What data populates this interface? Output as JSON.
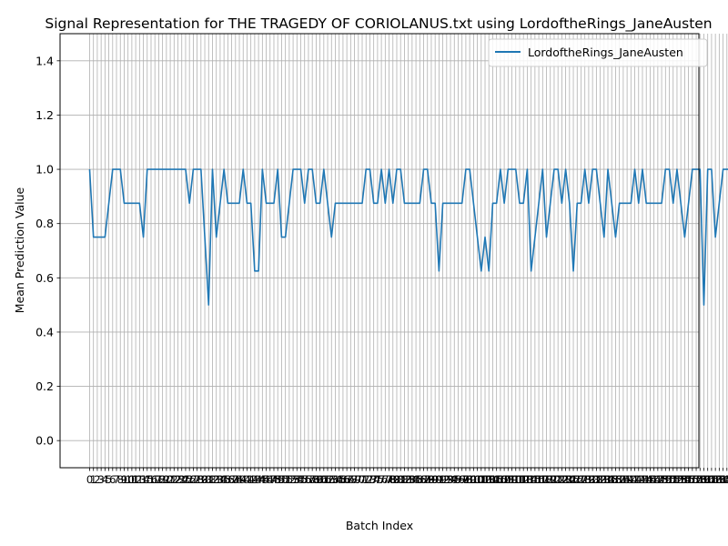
{
  "chart_data": {
    "type": "line",
    "title": "Signal Representation for THE TRAGEDY OF CORIOLANUS.txt using LordoftheRings_JaneAusten",
    "xlabel": "Batch Index",
    "ylabel": "Mean Prediction Value",
    "xlim": [
      -7.7,
      158.7
    ],
    "ylim": [
      -0.1,
      1.5
    ],
    "yticks": [
      0.0,
      0.2,
      0.4,
      0.6,
      0.8,
      1.0,
      1.2,
      1.4
    ],
    "ytick_labels": [
      "0.0",
      "0.2",
      "0.4",
      "0.6",
      "0.8",
      "1.0",
      "1.2",
      "1.4"
    ],
    "grid": true,
    "legend_position": "top-right",
    "series": [
      {
        "name": "LordoftheRings_JaneAusten",
        "color": "#1f77b4",
        "values": [
          1.0,
          0.75,
          0.75,
          0.75,
          0.75,
          0.875,
          1.0,
          1.0,
          1.0,
          0.875,
          0.875,
          0.875,
          0.875,
          0.875,
          0.75,
          1.0,
          1.0,
          1.0,
          1.0,
          1.0,
          1.0,
          1.0,
          1.0,
          1.0,
          1.0,
          1.0,
          0.875,
          1.0,
          1.0,
          1.0,
          0.75,
          0.5,
          1.0,
          0.75,
          0.875,
          1.0,
          0.875,
          0.875,
          0.875,
          0.875,
          1.0,
          0.875,
          0.875,
          0.625,
          0.625,
          1.0,
          0.875,
          0.875,
          0.875,
          1.0,
          0.75,
          0.75,
          0.875,
          1.0,
          1.0,
          1.0,
          0.875,
          1.0,
          1.0,
          0.875,
          0.875,
          1.0,
          0.875,
          0.75,
          0.875,
          0.875,
          0.875,
          0.875,
          0.875,
          0.875,
          0.875,
          0.875,
          1.0,
          1.0,
          0.875,
          0.875,
          1.0,
          0.875,
          1.0,
          0.875,
          1.0,
          1.0,
          0.875,
          0.875,
          0.875,
          0.875,
          0.875,
          1.0,
          1.0,
          0.875,
          0.875,
          0.625,
          0.875,
          0.875,
          0.875,
          0.875,
          0.875,
          0.875,
          1.0,
          1.0,
          0.875,
          0.75,
          0.625,
          0.75,
          0.625,
          0.875,
          0.875,
          1.0,
          0.875,
          1.0,
          1.0,
          1.0,
          0.875,
          0.875,
          1.0,
          0.625,
          0.75,
          0.875,
          1.0,
          0.75,
          0.875,
          1.0,
          1.0,
          0.875,
          1.0,
          0.875,
          0.625,
          0.875,
          0.875,
          1.0,
          0.875,
          1.0,
          1.0,
          0.875,
          0.75,
          1.0,
          0.875,
          0.75,
          0.875,
          0.875,
          0.875,
          0.875,
          1.0,
          0.875,
          1.0,
          0.875,
          0.875,
          0.875,
          0.875,
          0.875,
          1.0,
          1.0,
          0.875,
          1.0,
          0.875,
          0.75,
          0.875,
          1.0,
          1.0,
          1.0,
          0.5,
          1.0,
          1.0,
          0.75,
          0.875,
          1.0,
          1.0,
          1.0
        ]
      }
    ]
  }
}
